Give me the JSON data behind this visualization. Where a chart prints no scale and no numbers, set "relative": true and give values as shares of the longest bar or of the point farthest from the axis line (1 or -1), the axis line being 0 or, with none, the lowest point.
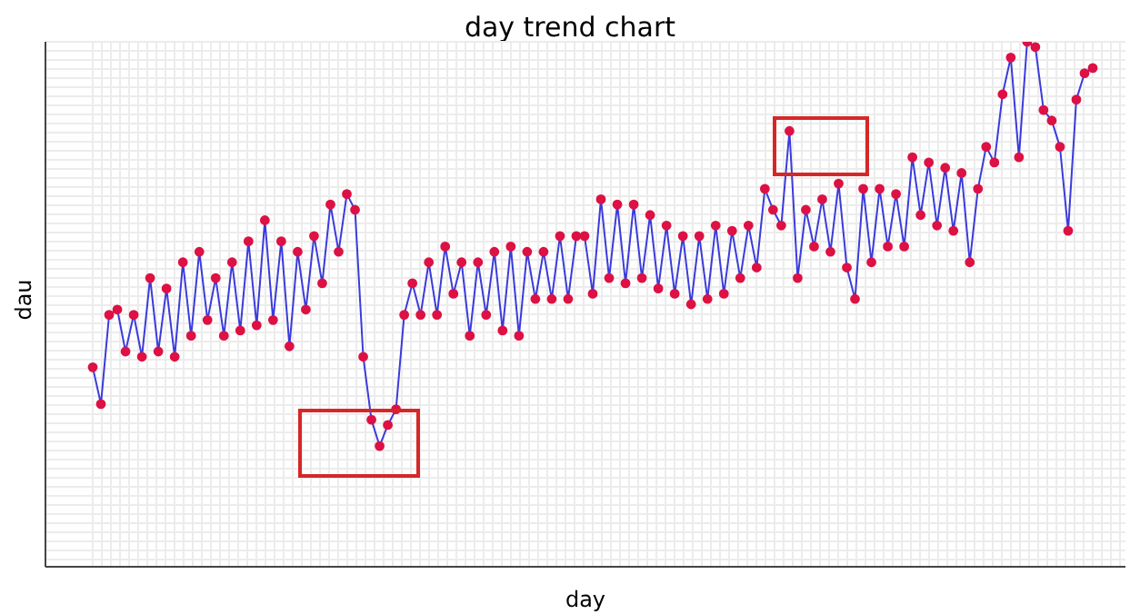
{
  "chart_data": {
    "type": "line",
    "title": "day trend chart",
    "xlabel": "day",
    "ylabel": "dau",
    "relative": true,
    "grid": true,
    "marker": "circle",
    "line_style": "solid",
    "categories": [
      null,
      null,
      null,
      null,
      null,
      null,
      null,
      null,
      null,
      null,
      null,
      null,
      null,
      null,
      null,
      null,
      null,
      null,
      null,
      null,
      null,
      null,
      null,
      null,
      null,
      null,
      null,
      null,
      null,
      null,
      null,
      null,
      null,
      null,
      null,
      null,
      null,
      null,
      null,
      null,
      null,
      null,
      null,
      null,
      null,
      null,
      null,
      null,
      null,
      null,
      null,
      null,
      null,
      null,
      null,
      null,
      null,
      null,
      null,
      null,
      null,
      null,
      null,
      null,
      null,
      null,
      null,
      null,
      null,
      null,
      null,
      null,
      null,
      null,
      null,
      null,
      null,
      null,
      null,
      null,
      null,
      null,
      null,
      null,
      null,
      null,
      null,
      null,
      null,
      null,
      null,
      null,
      null,
      null,
      null,
      null,
      null,
      null,
      null,
      null,
      null,
      null,
      null,
      null,
      null,
      null,
      null,
      null,
      null,
      null,
      null,
      null,
      null,
      null,
      null,
      null,
      null,
      null,
      null,
      null,
      null,
      null,
      null
    ],
    "series": [
      {
        "color": "#3b3bdc",
        "values": [
          0.38,
          0.31,
          0.48,
          0.49,
          0.41,
          0.48,
          0.4,
          0.55,
          0.41,
          0.53,
          0.4,
          0.58,
          0.44,
          0.6,
          0.47,
          0.55,
          0.44,
          0.58,
          0.45,
          0.62,
          0.46,
          0.66,
          0.47,
          0.62,
          0.42,
          0.6,
          0.49,
          0.63,
          0.54,
          0.69,
          0.6,
          0.71,
          0.68,
          0.4,
          0.28,
          0.23,
          0.27,
          0.3,
          0.48,
          0.54,
          0.48,
          0.58,
          0.48,
          0.61,
          0.52,
          0.58,
          0.44,
          0.58,
          0.48,
          0.6,
          0.45,
          0.61,
          0.44,
          0.6,
          0.51,
          0.6,
          0.51,
          0.63,
          0.51,
          0.63,
          0.63,
          0.52,
          0.7,
          0.55,
          0.69,
          0.54,
          0.69,
          0.55,
          0.67,
          0.53,
          0.65,
          0.52,
          0.63,
          0.5,
          0.63,
          0.51,
          0.65,
          0.52,
          0.64,
          0.55,
          0.65,
          0.57,
          0.72,
          0.68,
          0.65,
          0.83,
          0.55,
          0.68,
          0.61,
          0.7,
          0.6,
          0.73,
          0.57,
          0.51,
          0.72,
          0.58,
          0.72,
          0.61,
          0.71,
          0.61,
          0.78,
          0.67,
          0.77,
          0.65,
          0.76,
          0.64,
          0.75,
          0.58,
          0.72,
          0.8,
          0.77,
          0.9,
          0.97,
          0.78,
          1.0,
          0.99,
          0.87,
          0.85,
          0.8,
          0.64,
          0.89,
          0.94,
          0.95
        ]
      }
    ]
  }
}
